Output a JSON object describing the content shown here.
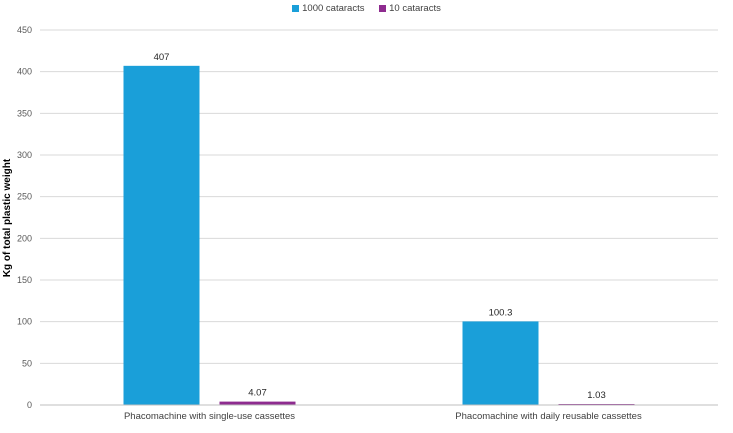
{
  "chart_data": {
    "type": "bar",
    "title": "",
    "xlabel": "",
    "ylabel": "Kg of total plastic weight",
    "categories": [
      "Phacomachine with single-use cassettes",
      "Phacomachine with daily reusable cassettes"
    ],
    "series": [
      {
        "name": "1000 cataracts",
        "color": "#1a9fd9",
        "values": [
          407,
          100.3
        ],
        "labels": [
          "407",
          "100.3"
        ]
      },
      {
        "name": "10 cataracts",
        "color": "#8e2b8f",
        "values": [
          4.07,
          1.03
        ],
        "labels": [
          "4.07",
          "1.03"
        ]
      }
    ],
    "ylim": [
      0,
      450
    ],
    "yticks": [
      0,
      50,
      100,
      150,
      200,
      250,
      300,
      350,
      400,
      450
    ],
    "grid": true,
    "legend_position": "top-center"
  }
}
